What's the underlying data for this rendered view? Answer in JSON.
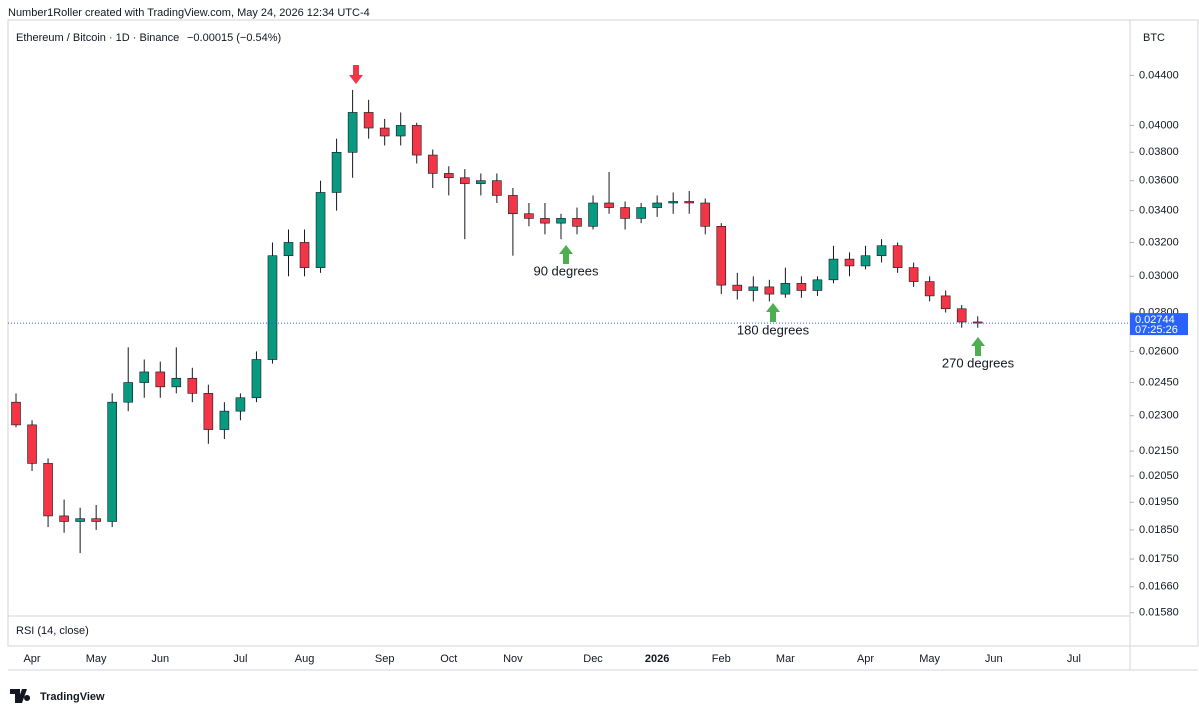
{
  "header": {
    "attribution": "Number1Roller created with TradingView.com, May 24, 2026 12:34 UTC-4"
  },
  "chart_data": {
    "type": "candlestick",
    "title": "Ethereum / Bitcoin · 1D · Binance",
    "change": "−0.00015 (−0.54%)",
    "y_axis_label": "BTC",
    "countdown": "07:25:26",
    "indicator": "RSI (14, close)",
    "annotations": [
      "90 degrees",
      "180 degrees",
      "270 degrees"
    ],
    "log_scale": true,
    "up_color": "#089981",
    "down_color": "#f23645",
    "last_price_color": "#2962ff",
    "ylim": [
      0.0157,
      0.0489
    ],
    "yticks": [
      {
        "value": 0.044,
        "label": "0.04400"
      },
      {
        "value": 0.04,
        "label": "0.04000"
      },
      {
        "value": 0.038,
        "label": "0.03800"
      },
      {
        "value": 0.036,
        "label": "0.03600"
      },
      {
        "value": 0.034,
        "label": "0.03400"
      },
      {
        "value": 0.032,
        "label": "0.03200"
      },
      {
        "value": 0.03,
        "label": "0.03000"
      },
      {
        "value": 0.028,
        "label": "0.02800"
      },
      {
        "value": 0.026,
        "label": "0.02600"
      },
      {
        "value": 0.0245,
        "label": "0.02450"
      },
      {
        "value": 0.023,
        "label": "0.02300"
      },
      {
        "value": 0.0215,
        "label": "0.02150"
      },
      {
        "value": 0.0205,
        "label": "0.02050"
      },
      {
        "value": 0.0195,
        "label": "0.01950"
      },
      {
        "value": 0.0185,
        "label": "0.01850"
      },
      {
        "value": 0.0175,
        "label": "0.01750"
      },
      {
        "value": 0.0166,
        "label": "0.01660"
      },
      {
        "value": 0.0158,
        "label": "0.01580"
      }
    ],
    "categories": [
      null,
      "Apr",
      null,
      null,
      null,
      "May",
      null,
      null,
      null,
      "Jun",
      null,
      null,
      null,
      null,
      "Jul",
      null,
      null,
      null,
      "Aug",
      null,
      null,
      null,
      null,
      "Sep",
      null,
      null,
      null,
      "Oct",
      null,
      null,
      null,
      "Nov",
      null,
      null,
      null,
      null,
      "Dec",
      null,
      null,
      null,
      "2026",
      null,
      null,
      null,
      "Feb",
      null,
      null,
      null,
      "Mar",
      null,
      null,
      null,
      null,
      "Apr",
      null,
      null,
      null,
      "May",
      null,
      null,
      null,
      "Jun",
      null,
      null,
      null,
      null,
      "Jul",
      null,
      null,
      null
    ],
    "open": [
      0.0236,
      0.0226,
      0.021,
      0.019,
      0.0188,
      0.0189,
      0.0188,
      0.0236,
      0.0245,
      0.025,
      0.0243,
      0.0247,
      0.024,
      0.0224,
      0.0232,
      0.0238,
      0.0256,
      0.0312,
      0.032,
      0.0305,
      0.0352,
      0.038,
      0.041,
      0.0398,
      0.0392,
      0.04,
      0.0378,
      0.0365,
      0.0362,
      0.0358,
      0.036,
      0.035,
      0.0338,
      0.0335,
      0.0332,
      0.0335,
      0.033,
      0.0345,
      0.0342,
      0.0335,
      0.0342,
      0.0345,
      0.0346,
      0.0345,
      0.033,
      0.0295,
      0.0292,
      0.0294,
      0.029,
      0.0296,
      0.0292,
      0.0298,
      0.031,
      0.0306,
      0.0312,
      0.0318,
      0.0305,
      0.0297,
      0.0289,
      0.0282,
      0.0275,
      null,
      null,
      null,
      null,
      null,
      null,
      null,
      null,
      null
    ],
    "high": [
      0.024,
      0.0228,
      0.0212,
      0.0196,
      0.0193,
      0.0194,
      0.024,
      0.0262,
      0.0256,
      0.0255,
      0.0262,
      0.0252,
      0.0244,
      0.0236,
      0.024,
      0.026,
      0.032,
      0.0328,
      0.0328,
      0.036,
      0.039,
      0.0428,
      0.042,
      0.0405,
      0.041,
      0.0402,
      0.0382,
      0.037,
      0.0368,
      0.0365,
      0.0365,
      0.0355,
      0.0345,
      0.0345,
      0.0338,
      0.0342,
      0.035,
      0.0366,
      0.0346,
      0.0345,
      0.035,
      0.0352,
      0.0353,
      0.0348,
      0.0332,
      0.0302,
      0.03,
      0.0298,
      0.0305,
      0.03,
      0.03,
      0.0318,
      0.0314,
      0.0318,
      0.0322,
      0.032,
      0.0308,
      0.03,
      0.0292,
      0.0284,
      0.0278,
      null,
      null,
      null,
      null,
      null,
      null,
      null,
      null,
      null
    ],
    "low": [
      0.0225,
      0.0207,
      0.0186,
      0.0184,
      0.0177,
      0.0185,
      0.0186,
      0.0232,
      0.0238,
      0.0238,
      0.024,
      0.0236,
      0.0218,
      0.022,
      0.0228,
      0.0236,
      0.0254,
      0.03,
      0.03,
      0.0302,
      0.034,
      0.0362,
      0.039,
      0.0385,
      0.0385,
      0.0372,
      0.0355,
      0.035,
      0.0322,
      0.035,
      0.0345,
      0.0312,
      0.033,
      0.0325,
      0.0322,
      0.0325,
      0.0328,
      0.0338,
      0.0328,
      0.0332,
      0.0336,
      0.0338,
      0.0338,
      0.0325,
      0.029,
      0.0287,
      0.0286,
      0.0286,
      0.0288,
      0.0288,
      0.0289,
      0.0296,
      0.03,
      0.0304,
      0.0308,
      0.0302,
      0.0294,
      0.0286,
      0.028,
      0.0272,
      0.0272,
      null,
      null,
      null,
      null,
      null,
      null,
      null,
      null,
      null
    ],
    "close": [
      0.0226,
      0.021,
      0.019,
      0.0188,
      0.0189,
      0.0188,
      0.0236,
      0.0245,
      0.025,
      0.0243,
      0.0247,
      0.024,
      0.0224,
      0.0232,
      0.0238,
      0.0256,
      0.0312,
      0.032,
      0.0305,
      0.0352,
      0.038,
      0.041,
      0.0398,
      0.0392,
      0.04,
      0.0378,
      0.0365,
      0.0362,
      0.0358,
      0.036,
      0.035,
      0.0338,
      0.0335,
      0.0332,
      0.0335,
      0.033,
      0.0345,
      0.0342,
      0.0335,
      0.0342,
      0.0345,
      0.0346,
      0.0345,
      0.033,
      0.0295,
      0.0292,
      0.0294,
      0.029,
      0.0296,
      0.0292,
      0.0298,
      0.031,
      0.0306,
      0.0312,
      0.0318,
      0.0305,
      0.0297,
      0.0289,
      0.0282,
      0.0275,
      0.02744,
      null,
      null,
      null,
      null,
      null,
      null,
      null,
      null,
      null
    ]
  }
}
